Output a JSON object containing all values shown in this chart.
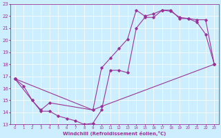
{
  "xlabel": "Windchill (Refroidissement éolien,°C)",
  "bg_color": "#cceeff",
  "line_color": "#993399",
  "xlim": [
    -0.5,
    23.5
  ],
  "ylim": [
    13,
    23
  ],
  "xticks": [
    0,
    1,
    2,
    3,
    4,
    5,
    6,
    7,
    8,
    9,
    10,
    11,
    12,
    13,
    14,
    15,
    16,
    17,
    18,
    19,
    20,
    21,
    22,
    23
  ],
  "yticks": [
    13,
    14,
    15,
    16,
    17,
    18,
    19,
    20,
    21,
    22,
    23
  ],
  "line1_x": [
    0,
    1,
    2,
    3,
    4,
    5,
    6,
    7,
    8,
    9,
    10,
    11,
    12,
    13,
    14,
    15,
    16,
    17,
    18,
    19,
    20,
    21,
    22,
    23
  ],
  "line1_y": [
    16.8,
    16.2,
    15.0,
    14.1,
    14.1,
    13.7,
    13.5,
    13.3,
    13.0,
    13.1,
    14.2,
    17.5,
    17.5,
    17.3,
    21.0,
    21.9,
    21.9,
    22.5,
    22.5,
    21.8,
    21.8,
    21.7,
    21.7,
    18.0
  ],
  "line2_x": [
    0,
    2,
    3,
    4,
    9,
    10,
    11,
    12,
    13,
    14,
    15,
    16,
    17,
    18,
    19,
    20,
    21,
    22,
    23
  ],
  "line2_y": [
    16.8,
    15.0,
    14.2,
    14.8,
    14.2,
    17.7,
    18.5,
    19.3,
    20.1,
    22.5,
    22.0,
    22.2,
    22.5,
    22.4,
    21.9,
    21.8,
    21.5,
    20.5,
    18.0
  ],
  "line3_x": [
    0,
    9,
    10,
    23
  ],
  "line3_y": [
    16.8,
    14.2,
    14.5,
    18.0
  ]
}
